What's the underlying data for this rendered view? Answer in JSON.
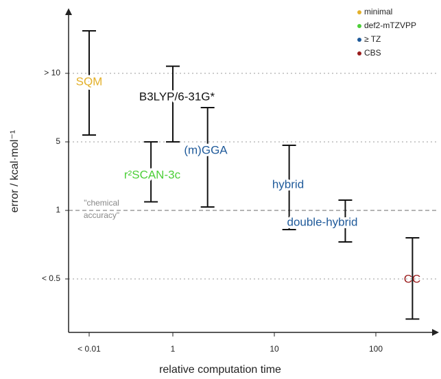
{
  "chart_data": {
    "type": "errorbar",
    "x_label": "relative computation time",
    "y_label": "error / kcal·mol⁻¹",
    "xscale": "log",
    "xlim": [
      0.003,
      420
    ],
    "xticks": [
      {
        "value": 0.01,
        "label": "< 0.01"
      },
      1,
      10,
      100
    ],
    "ylim": [
      0.1,
      14.6
    ],
    "yticks": [
      {
        "value": 0.5,
        "label": "< 0.5"
      },
      1,
      5,
      {
        "value": 10,
        "label": "> 10"
      }
    ],
    "grid": true,
    "reference_line": {
      "value": 1,
      "label": [
        "\"chemical",
        "accuracy\""
      ]
    },
    "legend_position": "upper right",
    "legend": [
      {
        "name": "minimal",
        "color": "#e3b02a"
      },
      {
        "name": "def2-mTZVPP",
        "color": "#4ccf38"
      },
      {
        "name": "≥ TZ",
        "color": "#1f5a9a"
      },
      {
        "name": "CBS",
        "color": "#9a1c1c"
      }
    ],
    "bars": [
      {
        "label": "SQM",
        "color": "#e3b02a",
        "x": 0.01,
        "low": 5.5,
        "high": 13
      },
      {
        "label": "B3LYP/6-31G*",
        "color": "#111111",
        "x": 1,
        "low": 5,
        "high": 10.5
      },
      {
        "label": "r²SCAN-3c",
        "color": "#4ccf38",
        "x": 0.3,
        "low": 1.5,
        "high": 5
      },
      {
        "label": "(m)GGA",
        "color": "#1f5a9a",
        "x": 2.2,
        "low": 1.2,
        "high": 7.5
      },
      {
        "label": "hybrid",
        "color": "#1f5a9a",
        "x": 14,
        "low": 0.86,
        "high": 4.8
      },
      {
        "label": "double-hybrid",
        "color": "#1f5a9a",
        "x": 50,
        "low": 0.77,
        "high": 1.6
      },
      {
        "label": "CC",
        "color": "#9a1c1c",
        "x": 230,
        "low": 0.2,
        "high": 0.8
      }
    ]
  }
}
